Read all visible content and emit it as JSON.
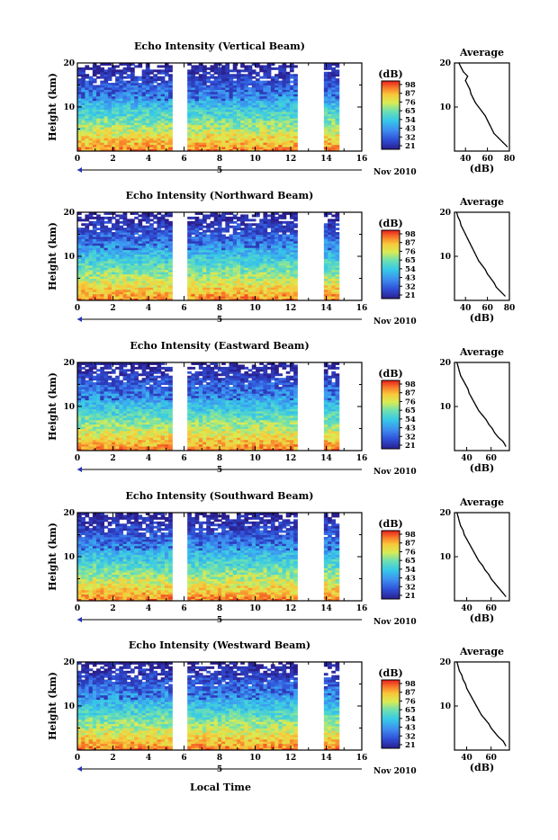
{
  "chart_data": [
    {
      "type": "heatmap",
      "title": "Echo Intensity (Vertical Beam)",
      "ylabel": "Height (km)",
      "ylim": [
        0,
        20
      ],
      "xlim": [
        0,
        16
      ],
      "x_ticks": [
        "0",
        "2",
        "4",
        "6",
        "8",
        "10",
        "12",
        "14",
        "16"
      ],
      "y_ticks": [
        "10",
        "20"
      ],
      "date_label": "5",
      "month_label": "Nov 2010",
      "colorbar_label": "(dB)",
      "colorbar_ticks": [
        "98",
        "87",
        "76",
        "65",
        "54",
        "43",
        "32",
        "21"
      ],
      "gaps": [
        [
          5.5,
          6.0
        ],
        [
          12.5,
          13.8
        ]
      ],
      "end": 14.9,
      "profile": {
        "title": "Average",
        "xlabel": "(dB)",
        "x_ticks": [
          "40",
          "60",
          "80"
        ],
        "y_ticks": [
          "10",
          "20"
        ],
        "xlim": [
          30,
          80
        ],
        "heights": [
          1,
          2,
          3,
          4,
          5,
          6,
          7,
          8,
          9,
          10,
          11,
          12,
          13,
          14,
          15,
          16,
          17,
          18,
          19,
          20
        ],
        "values": [
          78,
          74,
          70,
          66,
          64,
          62,
          60,
          58,
          55,
          52,
          49,
          47,
          45,
          44,
          42,
          40,
          42,
          38,
          36,
          34
        ]
      }
    },
    {
      "type": "heatmap",
      "title": "Echo Intensity (Northward Beam)",
      "ylabel": "Height (km)",
      "ylim": [
        0,
        20
      ],
      "xlim": [
        0,
        16
      ],
      "x_ticks": [
        "0",
        "2",
        "4",
        "6",
        "8",
        "10",
        "12",
        "14",
        "16"
      ],
      "y_ticks": [
        "10",
        "20"
      ],
      "date_label": "5",
      "month_label": "Nov 2010",
      "colorbar_label": "(dB)",
      "colorbar_ticks": [
        "98",
        "87",
        "76",
        "65",
        "54",
        "43",
        "32",
        "21"
      ],
      "gaps": [
        [
          5.5,
          6.0
        ],
        [
          12.5,
          13.8
        ]
      ],
      "end": 14.9,
      "profile": {
        "title": "Average",
        "xlabel": "(dB)",
        "x_ticks": [
          "40",
          "60",
          "80"
        ],
        "y_ticks": [
          "10",
          "20"
        ],
        "xlim": [
          30,
          80
        ],
        "heights": [
          1,
          2,
          3,
          4,
          5,
          6,
          7,
          8,
          9,
          10,
          11,
          12,
          13,
          14,
          15,
          16,
          17,
          18,
          19,
          20
        ],
        "values": [
          76,
          72,
          68,
          66,
          63,
          60,
          58,
          55,
          52,
          50,
          48,
          46,
          44,
          42,
          40,
          38,
          36,
          35,
          33,
          32
        ]
      }
    },
    {
      "type": "heatmap",
      "title": "Echo Intensity (Eastward Beam)",
      "ylabel": "Height (km)",
      "ylim": [
        0,
        20
      ],
      "xlim": [
        0,
        16
      ],
      "x_ticks": [
        "0",
        "2",
        "4",
        "6",
        "8",
        "10",
        "12",
        "14",
        "16"
      ],
      "y_ticks": [
        "10",
        "20"
      ],
      "date_label": "5",
      "month_label": "Nov 2010",
      "colorbar_label": "(dB)",
      "colorbar_ticks": [
        "98",
        "87",
        "76",
        "65",
        "54",
        "43",
        "32",
        "21"
      ],
      "gaps": [
        [
          5.5,
          6.0
        ],
        [
          12.5,
          13.8
        ]
      ],
      "end": 14.9,
      "profile": {
        "title": "Average",
        "xlabel": "(dB)",
        "x_ticks": [
          "40",
          "60"
        ],
        "y_ticks": [
          "10",
          "20"
        ],
        "xlim": [
          30,
          75
        ],
        "heights": [
          1,
          2,
          3,
          4,
          5,
          6,
          7,
          8,
          9,
          10,
          11,
          12,
          13,
          14,
          15,
          16,
          17,
          18,
          19,
          20
        ],
        "values": [
          72,
          70,
          66,
          63,
          61,
          58,
          56,
          53,
          50,
          48,
          46,
          44,
          42,
          41,
          39,
          37,
          35,
          34,
          33,
          32
        ]
      }
    },
    {
      "type": "heatmap",
      "title": "Echo Intensity (Southward Beam)",
      "ylabel": "Height (km)",
      "ylim": [
        0,
        20
      ],
      "xlim": [
        0,
        16
      ],
      "x_ticks": [
        "0",
        "2",
        "4",
        "6",
        "8",
        "10",
        "12",
        "14",
        "16"
      ],
      "y_ticks": [
        "10",
        "20"
      ],
      "date_label": "5",
      "month_label": "Nov 2010",
      "colorbar_label": "(dB)",
      "colorbar_ticks": [
        "98",
        "87",
        "76",
        "65",
        "54",
        "43",
        "32",
        "21"
      ],
      "gaps": [
        [
          5.5,
          6.0
        ],
        [
          12.5,
          13.8
        ]
      ],
      "end": 14.9,
      "profile": {
        "title": "Average",
        "xlabel": "(dB)",
        "x_ticks": [
          "40",
          "60"
        ],
        "y_ticks": [
          "10",
          "20"
        ],
        "xlim": [
          30,
          75
        ],
        "heights": [
          1,
          2,
          3,
          4,
          5,
          6,
          7,
          8,
          9,
          10,
          11,
          12,
          13,
          14,
          15,
          16,
          17,
          18,
          19,
          20
        ],
        "values": [
          72,
          69,
          66,
          63,
          60,
          58,
          55,
          53,
          50,
          48,
          46,
          44,
          42,
          40,
          38,
          37,
          35,
          34,
          33,
          32
        ]
      }
    },
    {
      "type": "heatmap",
      "title": "Echo Intensity (Westward Beam)",
      "ylabel": "Height (km)",
      "xlabel": "Local Time",
      "ylim": [
        0,
        20
      ],
      "xlim": [
        0,
        16
      ],
      "x_ticks": [
        "0",
        "2",
        "4",
        "6",
        "8",
        "10",
        "12",
        "14",
        "16"
      ],
      "y_ticks": [
        "10",
        "20"
      ],
      "date_label": "5",
      "month_label": "Nov 2010",
      "colorbar_label": "(dB)",
      "colorbar_ticks": [
        "98",
        "87",
        "76",
        "65",
        "54",
        "43",
        "32",
        "21"
      ],
      "gaps": [
        [
          5.5,
          6.0
        ],
        [
          12.5,
          13.8
        ]
      ],
      "end": 14.9,
      "profile": {
        "title": "Average",
        "xlabel": "(dB)",
        "x_ticks": [
          "40",
          "60"
        ],
        "y_ticks": [
          "10",
          "20"
        ],
        "xlim": [
          30,
          75
        ],
        "heights": [
          1,
          2,
          3,
          4,
          5,
          6,
          7,
          8,
          9,
          10,
          11,
          12,
          13,
          14,
          15,
          16,
          17,
          18,
          19,
          20
        ],
        "values": [
          72,
          70,
          66,
          63,
          60,
          58,
          55,
          52,
          50,
          48,
          46,
          44,
          42,
          40,
          39,
          37,
          36,
          34,
          33,
          32
        ]
      }
    }
  ]
}
